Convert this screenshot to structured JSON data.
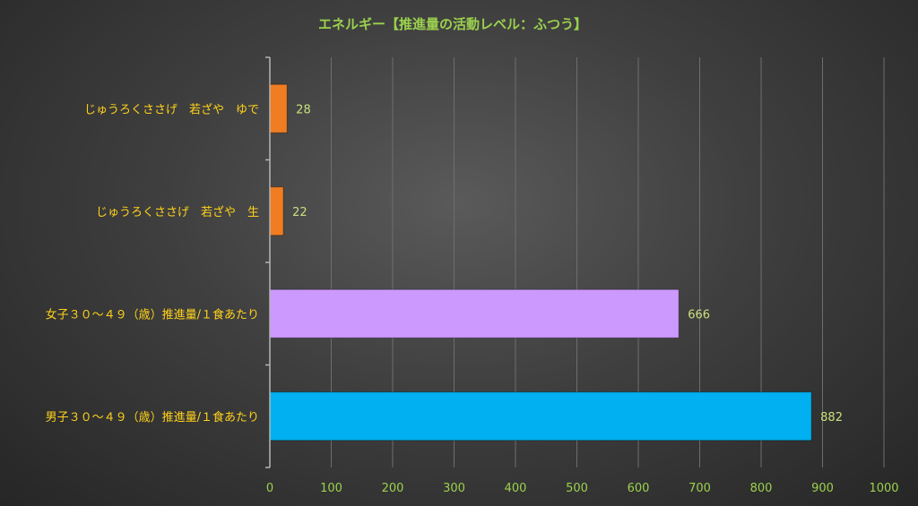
{
  "chart_data": {
    "type": "bar",
    "orientation": "horizontal",
    "title": "エネルギー【推進量の活動レベル：ふつう】",
    "categories": [
      "じゅうろくささげ　若ざや　ゆで",
      "じゅうろくささげ　若ざや　生",
      "女子３０～４９（歳）推進量/１食あたり",
      "男子３０～４９（歳）推進量/１食あたり"
    ],
    "values": [
      28,
      22,
      666,
      882
    ],
    "bar_colors": [
      "#f07d22",
      "#f07d22",
      "#cc99ff",
      "#00b0f0"
    ],
    "xlim": [
      0,
      1000
    ],
    "x_ticks": [
      "0",
      "100",
      "200",
      "300",
      "400",
      "500",
      "600",
      "700",
      "800",
      "900",
      "1000"
    ],
    "xlabel": "",
    "ylabel": "",
    "grid": true,
    "legend": "none",
    "colors": {
      "title": "#9bd14d",
      "category_labels": "#ffd21a",
      "value_labels": "#c9e07d",
      "tick_labels": "#9bd14d"
    }
  }
}
